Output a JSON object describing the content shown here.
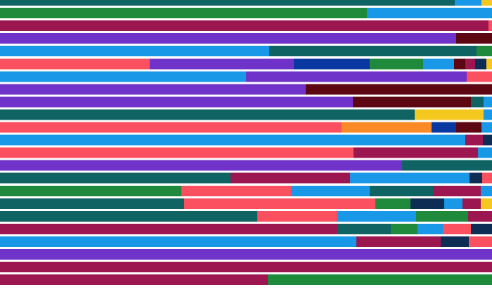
{
  "chart_data": {
    "type": "bar",
    "orientation": "horizontal",
    "stacked": true,
    "normalized": true,
    "x_max": 700,
    "grid": false,
    "legend": "none",
    "palette": {
      "teal": "#0f6363",
      "sky": "#1898e6",
      "green": "#1f8a3c",
      "wine": "#9c1650",
      "purple": "#7033c9",
      "maroon": "#5c0712",
      "salmon": "#fa5060",
      "navy": "#0838a0",
      "gold": "#f5c820",
      "orange": "#fa8a28",
      "darknavy": "#0d2d55"
    },
    "rows": [
      [
        {
          "c": "teal",
          "v": 647
        },
        {
          "c": "sky",
          "v": 38
        },
        {
          "c": "gold",
          "v": 15
        }
      ],
      [
        {
          "c": "green",
          "v": 522
        },
        {
          "c": "sky",
          "v": 178
        }
      ],
      [
        {
          "c": "wine",
          "v": 695
        },
        {
          "c": "salmon",
          "v": 5
        }
      ],
      [
        {
          "c": "purple",
          "v": 649
        },
        {
          "c": "maroon",
          "v": 51
        }
      ],
      [
        {
          "c": "sky",
          "v": 383
        },
        {
          "c": "teal",
          "v": 295
        },
        {
          "c": "green",
          "v": 22
        }
      ],
      [
        {
          "c": "salmon",
          "v": 213
        },
        {
          "c": "purple",
          "v": 205
        },
        {
          "c": "navy",
          "v": 108
        },
        {
          "c": "green",
          "v": 76
        },
        {
          "c": "sky",
          "v": 44
        },
        {
          "c": "maroon",
          "v": 16
        },
        {
          "c": "wine",
          "v": 14
        },
        {
          "c": "darknavy",
          "v": 16
        },
        {
          "c": "gold",
          "v": 8
        }
      ],
      [
        {
          "c": "sky",
          "v": 350
        },
        {
          "c": "purple",
          "v": 314
        },
        {
          "c": "salmon",
          "v": 36
        }
      ],
      [
        {
          "c": "purple",
          "v": 435
        },
        {
          "c": "maroon",
          "v": 265
        }
      ],
      [
        {
          "c": "purple",
          "v": 502
        },
        {
          "c": "maroon",
          "v": 168
        },
        {
          "c": "teal",
          "v": 18
        },
        {
          "c": "sky",
          "v": 12
        }
      ],
      [
        {
          "c": "teal",
          "v": 590
        },
        {
          "c": "gold",
          "v": 98
        },
        {
          "c": "sky",
          "v": 12
        }
      ],
      [
        {
          "c": "salmon",
          "v": 486
        },
        {
          "c": "orange",
          "v": 128
        },
        {
          "c": "navy",
          "v": 35
        },
        {
          "c": "maroon",
          "v": 36
        },
        {
          "c": "sky",
          "v": 15
        }
      ],
      [
        {
          "c": "sky",
          "v": 662
        },
        {
          "c": "wine",
          "v": 25
        },
        {
          "c": "darknavy",
          "v": 13
        }
      ],
      [
        {
          "c": "salmon",
          "v": 503
        },
        {
          "c": "wine",
          "v": 177
        },
        {
          "c": "sky",
          "v": 20
        }
      ],
      [
        {
          "c": "purple",
          "v": 572
        },
        {
          "c": "teal",
          "v": 128
        }
      ],
      [
        {
          "c": "teal",
          "v": 328
        },
        {
          "c": "wine",
          "v": 170
        },
        {
          "c": "sky",
          "v": 170
        },
        {
          "c": "darknavy",
          "v": 18
        },
        {
          "c": "salmon",
          "v": 14
        }
      ],
      [
        {
          "c": "green",
          "v": 258
        },
        {
          "c": "salmon",
          "v": 156
        },
        {
          "c": "sky",
          "v": 112
        },
        {
          "c": "teal",
          "v": 90
        },
        {
          "c": "wine",
          "v": 68
        },
        {
          "c": "sky",
          "v": 16
        }
      ],
      [
        {
          "c": "teal",
          "v": 262
        },
        {
          "c": "salmon",
          "v": 272
        },
        {
          "c": "green",
          "v": 50
        },
        {
          "c": "darknavy",
          "v": 48
        },
        {
          "c": "sky",
          "v": 26
        },
        {
          "c": "wine",
          "v": 26
        },
        {
          "c": "gold",
          "v": 16
        }
      ],
      [
        {
          "c": "teal",
          "v": 366
        },
        {
          "c": "salmon",
          "v": 114
        },
        {
          "c": "sky",
          "v": 112
        },
        {
          "c": "green",
          "v": 74
        },
        {
          "c": "wine",
          "v": 34
        }
      ],
      [
        {
          "c": "wine",
          "v": 480
        },
        {
          "c": "teal",
          "v": 76
        },
        {
          "c": "green",
          "v": 38
        },
        {
          "c": "sky",
          "v": 36
        },
        {
          "c": "salmon",
          "v": 40
        },
        {
          "c": "darknavy",
          "v": 30
        }
      ],
      [
        {
          "c": "sky",
          "v": 507
        },
        {
          "c": "wine",
          "v": 120
        },
        {
          "c": "darknavy",
          "v": 40
        },
        {
          "c": "salmon",
          "v": 33
        }
      ],
      [
        {
          "c": "purple",
          "v": 700
        }
      ],
      [
        {
          "c": "wine",
          "v": 700
        }
      ],
      [
        {
          "c": "wine",
          "v": 381
        },
        {
          "c": "green",
          "v": 319
        }
      ]
    ]
  }
}
